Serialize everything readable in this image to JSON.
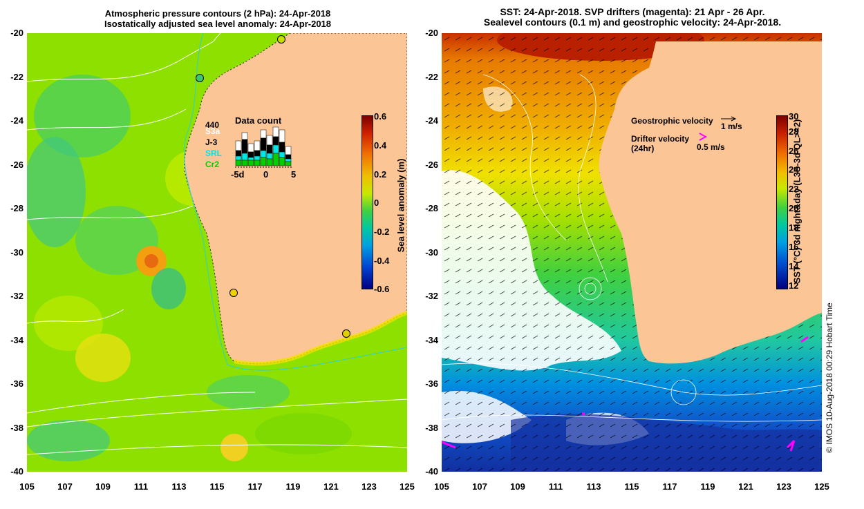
{
  "left_panel": {
    "title_line1": "Atmospheric pressure contours (2 hPa): 24-Apr-2018",
    "title_line2": "Isostatically adjusted sea level anomaly: 24-Apr-2018",
    "data_count": {
      "title": "Data count",
      "total": "440",
      "satellites": [
        {
          "name": "S3a",
          "color": "#ffffff"
        },
        {
          "name": "J-3",
          "color": "#000000"
        },
        {
          "name": "SRL",
          "color": "#00e5e5"
        },
        {
          "name": "Cr2",
          "color": "#00d000"
        }
      ],
      "x_ticks": [
        "-5d",
        "0",
        "5"
      ]
    },
    "colorbar": {
      "label": "Sea level anomaly (m)",
      "ticks": [
        "0.6",
        "0.4",
        "0.2",
        "0",
        "-0.2",
        "-0.4",
        "-0.6"
      ]
    }
  },
  "right_panel": {
    "title_line1": "SST: 24-Apr-2018. SVP drifters (magenta): 21 Apr - 26 Apr.",
    "title_line2": "Sealevel contours (0.1 m) and geostrophic velocity: 24-Apr-2018.",
    "legend": {
      "geostrophic_label": "Geostrophic velocity",
      "geostrophic_scale": "1 m/s",
      "drifter_label": "Drifter velocity",
      "drifter_sub": "(24hr)",
      "drifter_scale": "0.5 m/s"
    },
    "colorbar": {
      "label": "SST (°C) 3d night&day (L3S-3d QL>=2)",
      "ticks": [
        "30",
        "28",
        "26",
        "24",
        "22",
        "20",
        "18",
        "16",
        "14",
        "12"
      ]
    }
  },
  "axes": {
    "y_ticks": [
      "-20",
      "-22",
      "-24",
      "-26",
      "-28",
      "-30",
      "-32",
      "-34",
      "-36",
      "-38",
      "-40"
    ],
    "x_ticks": [
      "105",
      "107",
      "109",
      "111",
      "113",
      "115",
      "117",
      "119",
      "121",
      "123",
      "125"
    ]
  },
  "credit": "© IMOS 10-Aug-2018 00:29 Hobart Time"
}
